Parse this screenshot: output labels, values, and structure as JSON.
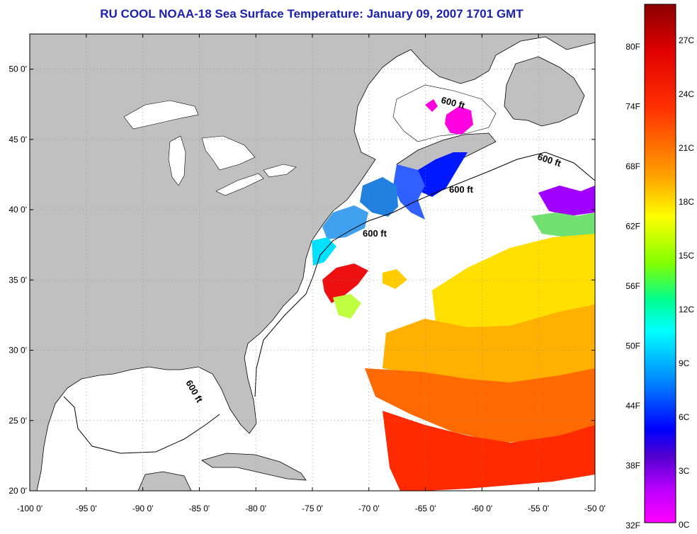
{
  "title": "RU COOL  NOAA-18  Sea Surface Temperature:  January 09, 2007 1701 GMT",
  "map": {
    "lon_range": [
      -100,
      -50
    ],
    "lat_range": [
      20,
      52.5
    ],
    "lon_ticks": [
      "-100 0'",
      "-95 0'",
      "-90 0'",
      "-85 0'",
      "-80 0'",
      "-75 0'",
      "-70 0'",
      "-65 0'",
      "-60 0'",
      "-55 0'",
      "-50 0'"
    ],
    "lat_ticks": [
      "20 0'",
      "25 0'",
      "30 0'",
      "35 0'",
      "40 0'",
      "45 0'",
      "50 0'"
    ],
    "contour_label": "600 ft",
    "land_color": "#c0c0c0",
    "ocean_color": "#ffffff",
    "grid": true
  },
  "colorbar": {
    "fahrenheit_labels": [
      "80F",
      "74F",
      "68F",
      "62F",
      "56F",
      "50F",
      "44F",
      "38F",
      "32F"
    ],
    "celsius_labels": [
      "27C",
      "24C",
      "21C",
      "18C",
      "15C",
      "12C",
      "9C",
      "6C",
      "3C",
      "0C"
    ],
    "colors": [
      "#8b0000",
      "#ff0000",
      "#ff7f00",
      "#ffd700",
      "#ffff00",
      "#7fff00",
      "#00ffcc",
      "#00ffff",
      "#0080ff",
      "#0000ff",
      "#8000ff",
      "#ff00ff"
    ]
  }
}
